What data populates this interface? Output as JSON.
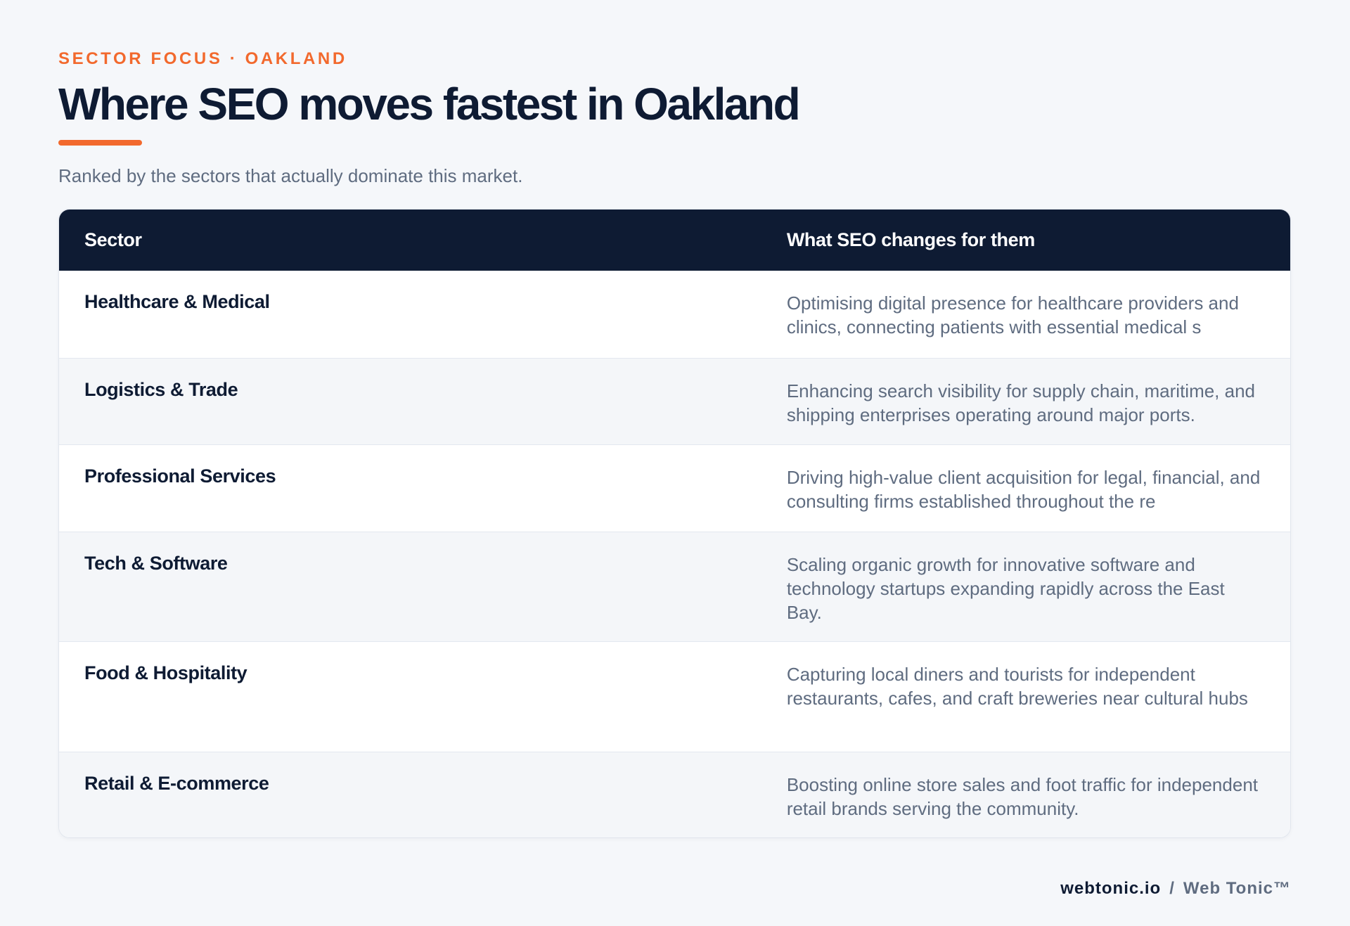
{
  "header": {
    "eyebrow": "SECTOR FOCUS · OAKLAND",
    "title": "Where SEO moves fastest in Oakland",
    "subtitle": "Ranked by the sectors that actually dominate this market."
  },
  "table": {
    "columns": [
      "Sector",
      "What SEO changes for them"
    ],
    "rows": [
      {
        "sector": "Healthcare & Medical",
        "change": "Optimising digital presence for healthcare providers and clinics, connecting patients with essential medical s"
      },
      {
        "sector": "Logistics & Trade",
        "change": "Enhancing search visibility for supply chain, maritime, and shipping enterprises operating around major ports."
      },
      {
        "sector": "Professional Services",
        "change": "Driving high-value client acquisition for legal, financial, and consulting firms established throughout the re"
      },
      {
        "sector": "Tech & Software",
        "change": "Scaling organic growth for innovative software and technology startups expanding rapidly across the East Bay."
      },
      {
        "sector": "Food & Hospitality",
        "change": "Capturing local diners and tourists for independent restaurants, cafes, and craft breweries near cultural hubs"
      },
      {
        "sector": "Retail & E-commerce",
        "change": "Boosting online store sales and foot traffic for independent retail brands serving the community."
      }
    ]
  },
  "footer": {
    "domain": "webtonic.io",
    "separator": "/",
    "brand": "Web Tonic™"
  },
  "colors": {
    "accent": "#f2692d",
    "navy": "#0e1b33",
    "muted": "#5f6c80",
    "background": "#f5f7fa"
  }
}
